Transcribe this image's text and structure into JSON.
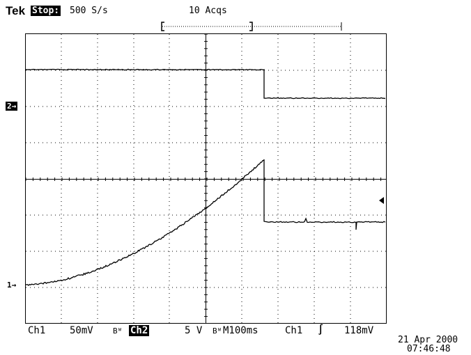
{
  "header": {
    "brand": "Tek",
    "run_state": "Stop:",
    "sample_rate": "500 S/s",
    "acquisitions": "10 Acqs"
  },
  "markers": {
    "ch2": "2→",
    "ch1": "1→"
  },
  "status_bar": {
    "ch1_label": "Ch1",
    "ch1_scale": "50mV",
    "bw_symbol": "Bᵂ",
    "ch2_label": "Ch2",
    "ch2_scale": "5 V",
    "bw_symbol_2": "Bᵂ",
    "timebase": "M100ms",
    "trigger_source": "Ch1",
    "trigger_slope": "∫",
    "trigger_level": "118mV"
  },
  "timestamp": {
    "date": "21 Apr 2000",
    "time": "07:46:48"
  }
}
